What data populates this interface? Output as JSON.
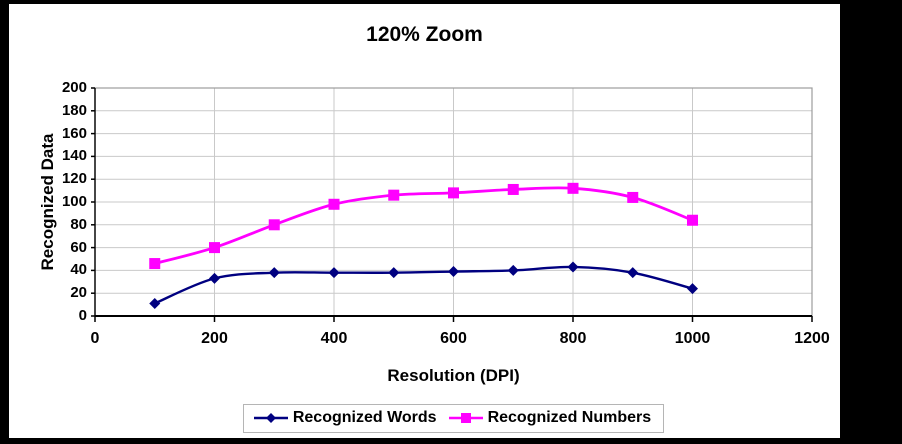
{
  "title": "120% Zoom",
  "chart_data": {
    "type": "line",
    "title": "120% Zoom",
    "xlabel": "Resolution (DPI)",
    "ylabel": "Recognized Data",
    "x": [
      100,
      200,
      300,
      400,
      500,
      600,
      700,
      800,
      900,
      1000
    ],
    "series": [
      {
        "name": "Recognized Words",
        "color": "#000080",
        "marker": "diamond",
        "values": [
          11,
          33,
          38,
          38,
          38,
          39,
          40,
          43,
          38,
          24
        ]
      },
      {
        "name": "Recognized Numbers",
        "color": "#FF00FF",
        "marker": "square",
        "values": [
          46,
          60,
          80,
          98,
          106,
          108,
          111,
          112,
          104,
          84
        ]
      }
    ],
    "xlim": [
      0,
      1200
    ],
    "ylim": [
      0,
      200
    ],
    "x_ticks": [
      0,
      200,
      400,
      600,
      800,
      1000,
      1200
    ],
    "y_ticks": [
      0,
      20,
      40,
      60,
      80,
      100,
      120,
      140,
      160,
      180,
      200
    ],
    "grid": true,
    "legend_position": "bottom",
    "colors": {
      "plot_background": "#FFFFFF",
      "outer_frame": "#000000",
      "gridline": "#C9C9C9",
      "plot_border": "#9C9C9C",
      "axis_line": "#000000"
    }
  }
}
